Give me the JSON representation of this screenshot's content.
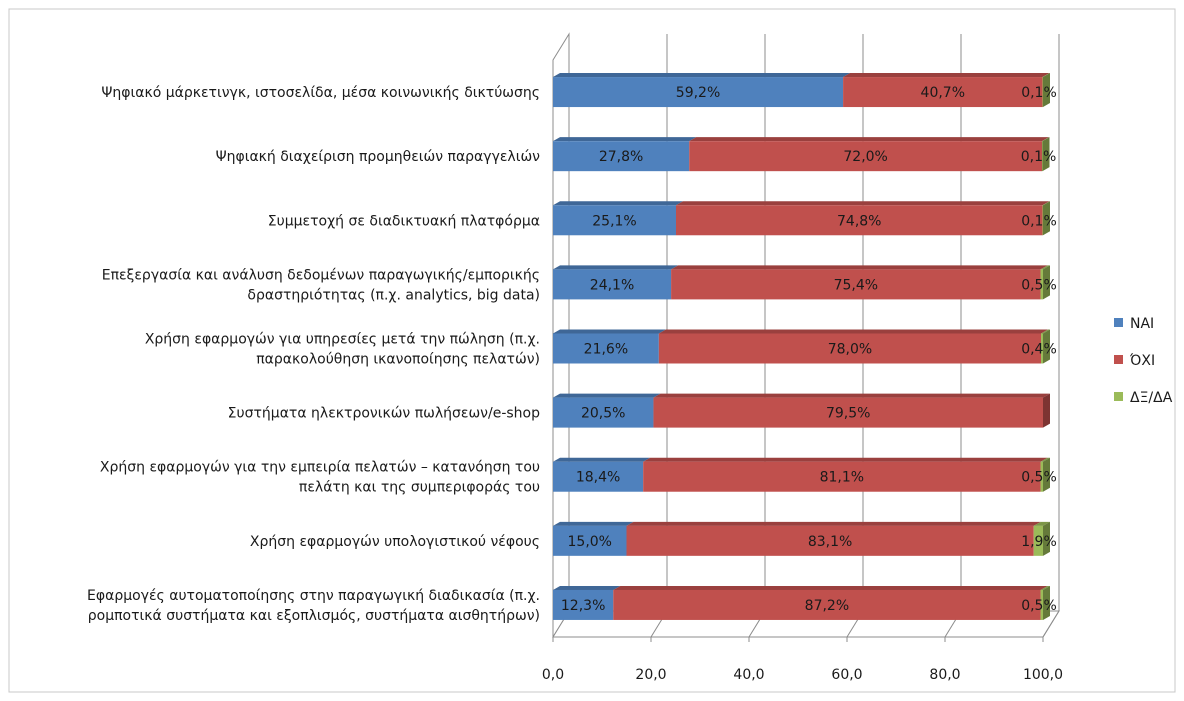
{
  "chart_data": {
    "type": "bar",
    "orientation": "horizontal",
    "stacked": true,
    "three_d": true,
    "categories": [
      "Ψηφιακό μάρκετινγκ, ιστοσελίδα, μέσα κοινωνικής δικτύωσης",
      "Ψηφιακή διαχείριση προμηθειών παραγγελιών",
      "Συμμετοχή σε διαδικτυακή πλατφόρμα",
      "Επεξεργασία και ανάλυση δεδομένων παραγωγικής/εμπορικής δραστηριότητας (π.χ. analytics, big data)",
      "Χρήση εφαρμογών για υπηρεσίες μετά την πώληση (π.χ. παρακολούθηση ικανοποίησης πελατών)",
      "Συστήματα ηλεκτρονικών πωλήσεων/e-shop",
      "Χρήση εφαρμογών για την εμπειρία πελατών – κατανόηση του πελάτη και της συμπεριφοράς του",
      "Χρήση εφαρμογών υπολογιστικού νέφους",
      "Εφαρμογές αυτοματοποίησης στην παραγωγική διαδικασία (π.χ. ρομποτικά συστήματα και εξοπλισμός, συστήματα αισθητήρων)"
    ],
    "category_lines": [
      [
        "Ψηφιακό μάρκετινγκ, ιστοσελίδα, μέσα κοινωνικής δικτύωσης"
      ],
      [
        "Ψηφιακή διαχείριση προμηθειών παραγγελιών"
      ],
      [
        "Συμμετοχή σε διαδικτυακή πλατφόρμα"
      ],
      [
        "Επεξεργασία και ανάλυση δεδομένων παραγωγικής/εμπορικής",
        "δραστηριότητας (π.χ. analytics, big data)"
      ],
      [
        "Χρήση εφαρμογών για υπηρεσίες μετά την πώληση (π.χ.",
        "παρακολούθηση ικανοποίησης πελατών)"
      ],
      [
        "Συστήματα ηλεκτρονικών πωλήσεων/e-shop"
      ],
      [
        "Χρήση εφαρμογών για την εμπειρία πελατών – κατανόηση του",
        "πελάτη και της συμπεριφοράς του"
      ],
      [
        "Χρήση εφαρμογών υπολογιστικού νέφους"
      ],
      [
        "Εφαρμογές αυτοματοποίησης στην παραγωγική διαδικασία (π.χ.",
        "ρομποτικά συστήματα και εξοπλισμός, συστήματα αισθητήρων)"
      ]
    ],
    "series": [
      {
        "name": "ΝΑΙ",
        "color": "#4f81bd",
        "values": [
          59.2,
          27.8,
          25.1,
          24.1,
          21.6,
          20.5,
          18.4,
          15.0,
          12.3
        ],
        "labels": [
          "59,2%",
          "27,8%",
          "25,1%",
          "24,1%",
          "21,6%",
          "20,5%",
          "18,4%",
          "15,0%",
          "12,3%"
        ]
      },
      {
        "name": "ΌΧΙ",
        "color": "#c0504d",
        "values": [
          40.7,
          72.0,
          74.8,
          75.4,
          78.0,
          79.5,
          81.1,
          83.1,
          87.2
        ],
        "labels": [
          "40,7%",
          "72,0%",
          "74,8%",
          "75,4%",
          "78,0%",
          "79,5%",
          "81,1%",
          "83,1%",
          "87,2%"
        ]
      },
      {
        "name": "ΔΞ/ΔΑ",
        "color": "#9bbb59",
        "values": [
          0.1,
          0.1,
          0.1,
          0.5,
          0.4,
          0.0,
          0.5,
          1.9,
          0.5
        ],
        "labels": [
          "0,1%",
          "0,1%",
          "0,1%",
          "0,5%",
          "0,4%",
          "",
          "0,5%",
          "1,9%",
          "0,5%"
        ]
      }
    ],
    "x_ticks": [
      "0,0",
      "20,0",
      "40,0",
      "60,0",
      "80,0",
      "100,0"
    ],
    "xlim": [
      0,
      100
    ],
    "grid": true,
    "legend_position": "right"
  }
}
